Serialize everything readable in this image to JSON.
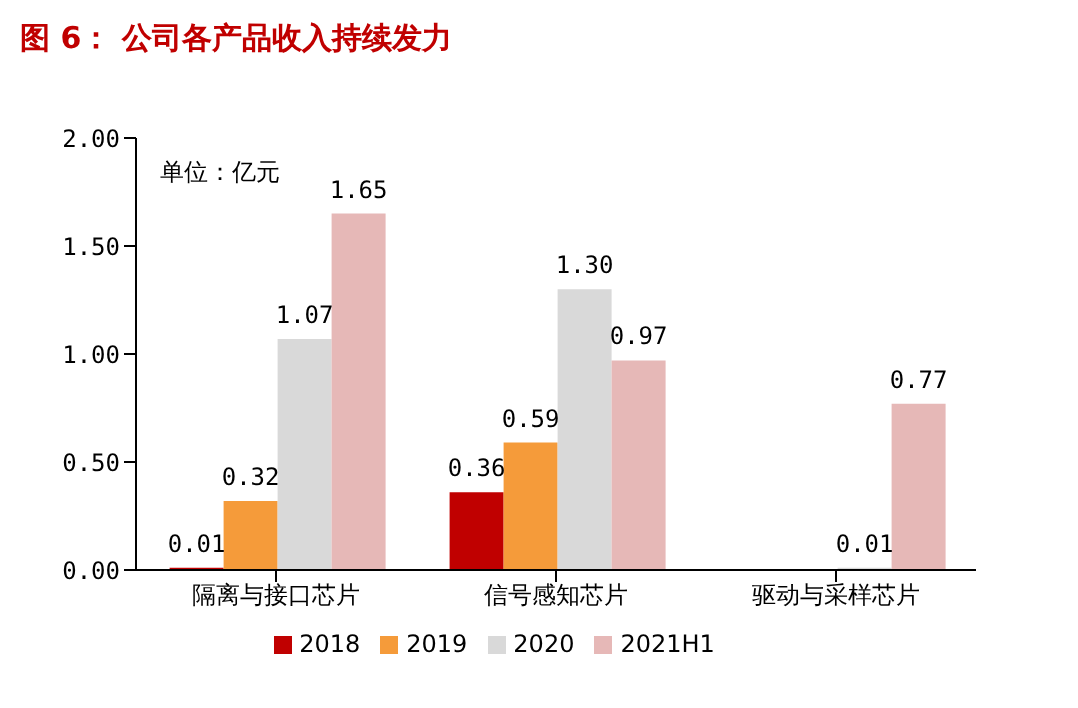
{
  "chart_data": {
    "type": "bar",
    "title": "图 6：  公司各产品收入持续发力",
    "annotations": [
      "单位：亿元"
    ],
    "categories": [
      "隔离与接口芯片",
      "信号感知芯片",
      "驱动与采样芯片"
    ],
    "series": [
      {
        "name": "2018",
        "color": "#c00000",
        "values": [
          0.01,
          0.36,
          null
        ],
        "value_labels": [
          "0.01",
          "0.36",
          null
        ]
      },
      {
        "name": "2019",
        "color": "#f59b3a",
        "values": [
          0.32,
          0.59,
          null
        ],
        "value_labels": [
          "0.32",
          "0.59",
          null
        ]
      },
      {
        "name": "2020",
        "color": "#d9d9d9",
        "values": [
          1.07,
          1.3,
          0.01
        ],
        "value_labels": [
          "1.07",
          "1.30",
          "0.01"
        ]
      },
      {
        "name": "2021H1",
        "color": "#e6b8b7",
        "values": [
          1.65,
          0.97,
          0.77
        ],
        "value_labels": [
          "1.65",
          "0.97",
          "0.77"
        ]
      }
    ],
    "ylim": [
      0,
      2
    ],
    "yticks": [
      {
        "value": 0,
        "label": "0.00"
      },
      {
        "value": 0.5,
        "label": "0.50"
      },
      {
        "value": 1,
        "label": "1.00"
      },
      {
        "value": 1.5,
        "label": "1.50"
      },
      {
        "value": 2,
        "label": "2.00"
      }
    ],
    "grid": false,
    "legend": "bottom"
  }
}
